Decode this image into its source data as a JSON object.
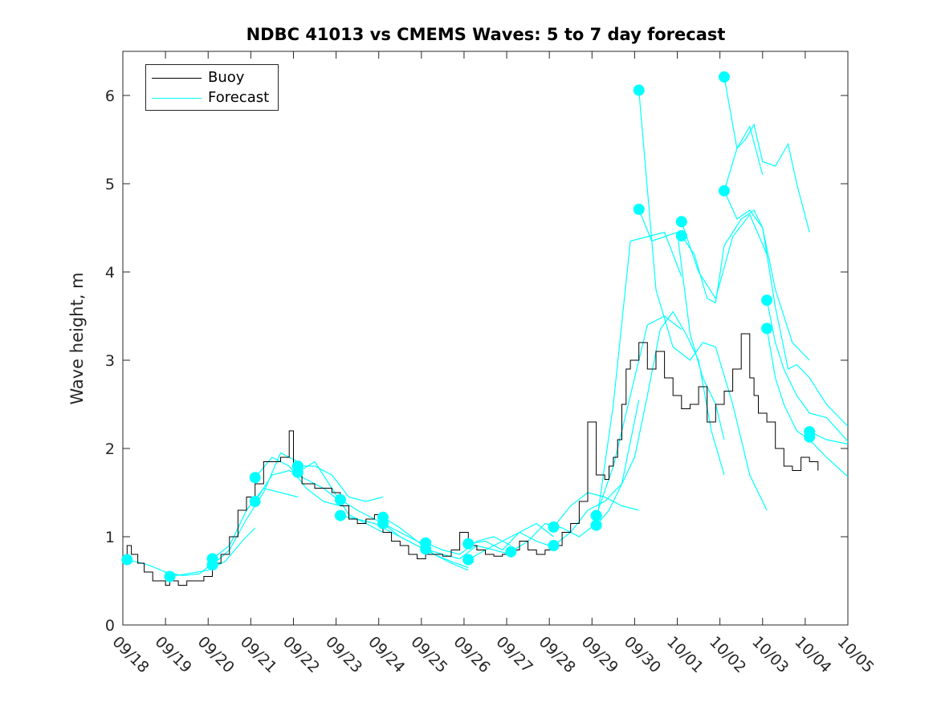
{
  "chart_data": {
    "type": "line",
    "title": "NDBC 41013 vs CMEMS Waves: 5 to 7 day forecast",
    "xlabel": "",
    "ylabel": "Wave height, m",
    "xlim": [
      0,
      17
    ],
    "ylim": [
      0,
      6.5
    ],
    "x_tick_labels": [
      "09/18",
      "09/19",
      "09/20",
      "09/21",
      "09/22",
      "09/23",
      "09/24",
      "09/25",
      "09/26",
      "09/27",
      "09/28",
      "09/29",
      "09/30",
      "10/01",
      "10/02",
      "10/03",
      "10/04",
      "10/05"
    ],
    "y_ticks": [
      0,
      1,
      2,
      3,
      4,
      5,
      6
    ],
    "legend": {
      "position": "top-left",
      "entries": [
        "Buoy",
        "Forecast"
      ]
    },
    "colors": {
      "buoy": "#000000",
      "forecast": "#00ffff",
      "axis": "#262626"
    },
    "series": [
      {
        "name": "Buoy",
        "x": [
          0,
          0.1,
          0.2,
          0.35,
          0.5,
          0.7,
          0.9,
          1,
          1.1,
          1.3,
          1.5,
          1.7,
          1.9,
          2.1,
          2.3,
          2.5,
          2.7,
          2.9,
          3.1,
          3.3,
          3.5,
          3.7,
          3.9,
          4,
          4.1,
          4.2,
          4.35,
          4.5,
          4.7,
          4.9,
          5.1,
          5.3,
          5.5,
          5.7,
          5.9,
          6.1,
          6.3,
          6.5,
          6.7,
          6.9,
          7.1,
          7.3,
          7.5,
          7.7,
          7.9,
          8.1,
          8.3,
          8.5,
          8.7,
          8.9,
          9.1,
          9.3,
          9.5,
          9.7,
          9.9,
          10.1,
          10.3,
          10.5,
          10.7,
          10.9,
          11.1,
          11.3,
          11.4,
          11.5,
          11.6,
          11.7,
          11.8,
          11.9,
          12.1,
          12.3,
          12.5,
          12.7,
          12.9,
          13.1,
          13.3,
          13.5,
          13.7,
          13.9,
          14.1,
          14.3,
          14.5,
          14.7,
          14.8,
          14.9,
          15.1,
          15.3,
          15.5,
          15.7,
          15.9,
          16.1,
          16.3
        ],
        "y": [
          0.75,
          0.9,
          0.8,
          0.7,
          0.6,
          0.5,
          0.5,
          0.45,
          0.5,
          0.45,
          0.5,
          0.5,
          0.55,
          0.7,
          0.8,
          1,
          1.3,
          1.45,
          1.6,
          1.85,
          1.85,
          1.9,
          2.2,
          1.8,
          1.7,
          1.6,
          1.6,
          1.55,
          1.55,
          1.5,
          1.35,
          1.2,
          1.15,
          1.2,
          1.25,
          1.05,
          0.95,
          0.9,
          0.8,
          0.75,
          0.8,
          0.8,
          0.78,
          0.85,
          1.05,
          0.9,
          0.85,
          0.8,
          0.78,
          0.8,
          0.85,
          0.95,
          0.85,
          0.8,
          0.85,
          0.9,
          1.05,
          1.15,
          1.4,
          2.3,
          1.7,
          1.65,
          1.8,
          1.9,
          2.1,
          2.5,
          2.9,
          3.0,
          3.2,
          2.9,
          3.1,
          2.8,
          2.6,
          2.45,
          2.5,
          2.7,
          2.3,
          2.5,
          2.65,
          2.9,
          3.3,
          2.8,
          2.6,
          2.4,
          2.3,
          2.0,
          1.8,
          1.75,
          1.9,
          1.85,
          1.75
        ]
      },
      {
        "name": "Forecast",
        "segments": [
          {
            "x": [
              0.1,
              0.6,
              1,
              1.4,
              1.8,
              2.1
            ],
            "y": [
              0.74,
              0.68,
              0.6,
              0.56,
              0.58,
              0.7
            ]
          },
          {
            "x": [
              1.1,
              1.5,
              2,
              2.4,
              2.8,
              3.1
            ],
            "y": [
              0.55,
              0.58,
              0.62,
              0.72,
              0.95,
              1.1
            ]
          },
          {
            "x": [
              2.1,
              2.5,
              2.9,
              3.3,
              3.7,
              4.1
            ],
            "y": [
              0.75,
              0.9,
              1.3,
              1.55,
              1.5,
              1.45
            ]
          },
          {
            "x": [
              2.1,
              2.5,
              2.9,
              3.3,
              3.7,
              4.1
            ],
            "y": [
              0.68,
              0.85,
              1.2,
              1.5,
              1.95,
              1.85
            ]
          },
          {
            "x": [
              3.1,
              3.5,
              3.9,
              4.3,
              4.7,
              5.1
            ],
            "y": [
              1.4,
              1.7,
              1.75,
              1.65,
              1.55,
              1.4
            ]
          },
          {
            "x": [
              3.1,
              3.5,
              3.9,
              4.3,
              4.7,
              5.1
            ],
            "y": [
              1.67,
              1.9,
              1.8,
              1.55,
              1.4,
              1.35
            ]
          },
          {
            "x": [
              4.1,
              4.5,
              4.9,
              5.3,
              5.7,
              6.1
            ],
            "y": [
              1.8,
              1.8,
              1.7,
              1.45,
              1.4,
              1.45
            ]
          },
          {
            "x": [
              4.1,
              4.5,
              4.9,
              5.3,
              5.7,
              6.1
            ],
            "y": [
              1.73,
              1.85,
              1.55,
              1.25,
              1.15,
              1.05
            ]
          },
          {
            "x": [
              5.1,
              5.5,
              5.9,
              6.3,
              6.7,
              7.1
            ],
            "y": [
              1.42,
              1.3,
              1.2,
              1.1,
              1.0,
              0.9
            ]
          },
          {
            "x": [
              5.1,
              5.5,
              5.9,
              6.3,
              6.7,
              7.1
            ],
            "y": [
              1.24,
              1.2,
              1.15,
              1.05,
              0.95,
              0.85
            ]
          },
          {
            "x": [
              6.1,
              6.5,
              6.9,
              7.3,
              7.7,
              8.1
            ],
            "y": [
              1.22,
              1.1,
              0.95,
              0.8,
              0.72,
              0.65
            ]
          },
          {
            "x": [
              6.1,
              6.5,
              6.9,
              7.3,
              7.7,
              8.1
            ],
            "y": [
              1.15,
              1.0,
              0.9,
              0.8,
              0.7,
              0.62
            ]
          },
          {
            "x": [
              7.1,
              7.5,
              7.9,
              8.3,
              8.7,
              9.1
            ],
            "y": [
              0.93,
              0.85,
              0.8,
              0.95,
              1.0,
              0.9
            ]
          },
          {
            "x": [
              7.1,
              7.5,
              7.9,
              8.3,
              8.7,
              9.1
            ],
            "y": [
              0.86,
              0.8,
              0.75,
              0.9,
              0.85,
              0.8
            ]
          },
          {
            "x": [
              8.1,
              8.5,
              8.9,
              9.3,
              9.7,
              10.1
            ],
            "y": [
              0.92,
              0.95,
              0.85,
              1.05,
              1.15,
              1.0
            ]
          },
          {
            "x": [
              8.1,
              8.5,
              8.9,
              9.3,
              9.7,
              10.1
            ],
            "y": [
              0.74,
              0.85,
              0.95,
              1.05,
              0.95,
              0.88
            ]
          },
          {
            "x": [
              9.1,
              9.5,
              9.9,
              10.3,
              10.7,
              11.1
            ],
            "y": [
              0.83,
              0.95,
              1.15,
              1.1,
              1.0,
              1.15
            ]
          },
          {
            "x": [
              10.1,
              10.5,
              10.9,
              11.3,
              11.7,
              12.1
            ],
            "y": [
              1.11,
              1.35,
              1.5,
              1.45,
              1.35,
              1.3
            ]
          },
          {
            "x": [
              10.1,
              10.5,
              10.9,
              11.3,
              11.7,
              12.1
            ],
            "y": [
              0.9,
              1.05,
              1.3,
              1.4,
              1.6,
              2.55
            ]
          },
          {
            "x": [
              11.1,
              11.5,
              11.9,
              12.3,
              12.7,
              13.1
            ],
            "y": [
              1.24,
              1.8,
              2.6,
              3.4,
              3.5,
              3.35
            ]
          },
          {
            "x": [
              11.1,
              11.4,
              11.7,
              12.0,
              12.3,
              12.6,
              12.9,
              13.2,
              13.5,
              13.8,
              14.1
            ],
            "y": [
              1.13,
              1.3,
              1.6,
              1.9,
              2.6,
              3.35,
              3.55,
              3.3,
              3.0,
              2.2,
              1.7
            ]
          },
          {
            "x": [
              11.1,
              11.5,
              11.9,
              12.3,
              12.7,
              13.1
            ],
            "y": [
              1.13,
              2.5,
              4.35,
              4.4,
              4.45,
              3.95
            ]
          },
          {
            "x": [
              12.1,
              12.4,
              12.7,
              13.0,
              13.3,
              13.6,
              13.9,
              14.1
            ],
            "y": [
              4.71,
              4.35,
              4.4,
              4.45,
              3.3,
              2.8,
              2.5,
              2.1
            ]
          },
          {
            "x": [
              12.1,
              12.5,
              12.9,
              13.3,
              13.6,
              13.9,
              14.3,
              14.7,
              15.1
            ],
            "y": [
              6.06,
              3.8,
              3.15,
              3.0,
              3.2,
              3.15,
              2.5,
              1.7,
              1.3
            ]
          },
          {
            "x": [
              13.1,
              13.5,
              13.9,
              14.3,
              14.7,
              15.1
            ],
            "y": [
              4.57,
              4.0,
              3.7,
              4.4,
              4.65,
              4.2
            ]
          },
          {
            "x": [
              13.1,
              13.4,
              13.7,
              13.9,
              14.1,
              14.5,
              14.8,
              15.0,
              15.3,
              15.7,
              16.1
            ],
            "y": [
              4.41,
              4.2,
              3.7,
              3.65,
              4.3,
              4.6,
              4.7,
              4.5,
              3.8,
              3.2,
              3.0
            ]
          },
          {
            "x": [
              14.1,
              14.4,
              14.6,
              14.8,
              15.0,
              15.3,
              15.6,
              15.8,
              16.1
            ],
            "y": [
              6.21,
              5.4,
              5.5,
              5.67,
              5.25,
              5.2,
              5.45,
              5.0,
              4.45
            ]
          },
          {
            "x": [
              14.1,
              14.4,
              14.7,
              15.0,
              15.3,
              15.6,
              15.8,
              16.1,
              16.5,
              17.0
            ],
            "y": [
              4.92,
              4.6,
              4.7,
              4.5,
              3.6,
              2.9,
              2.95,
              2.8,
              2.5,
              2.25
            ]
          },
          {
            "x": [
              14.1,
              14.4,
              14.7,
              15.0
            ],
            "y": [
              4.92,
              5.4,
              5.65,
              5.1
            ]
          },
          {
            "x": [
              15.1,
              15.3,
              15.5,
              15.8,
              16.1,
              16.5,
              17.0
            ],
            "y": [
              3.68,
              3.2,
              2.9,
              2.6,
              2.4,
              2.35,
              2.08
            ]
          },
          {
            "x": [
              15.1,
              15.3,
              15.5,
              15.8,
              16.1,
              16.5,
              17.0
            ],
            "y": [
              3.36,
              2.8,
              2.5,
              2.2,
              2.1,
              1.9,
              1.68
            ]
          },
          {
            "x": [
              16.1,
              16.5,
              17.0
            ],
            "y": [
              2.19,
              2.1,
              2.05
            ]
          }
        ],
        "markers": {
          "x": [
            0.1,
            1.1,
            2.1,
            2.1,
            3.1,
            3.1,
            4.1,
            4.1,
            5.1,
            5.1,
            6.1,
            6.1,
            7.1,
            7.1,
            8.1,
            8.1,
            9.1,
            10.1,
            10.1,
            11.1,
            11.1,
            12.1,
            12.1,
            13.1,
            13.1,
            14.1,
            14.1,
            15.1,
            15.1,
            16.1,
            16.1
          ],
          "y": [
            0.74,
            0.55,
            0.75,
            0.68,
            1.67,
            1.4,
            1.8,
            1.73,
            1.42,
            1.24,
            1.22,
            1.15,
            0.93,
            0.86,
            0.92,
            0.74,
            0.83,
            1.11,
            0.9,
            1.24,
            1.13,
            6.06,
            4.71,
            4.57,
            4.41,
            6.21,
            4.92,
            3.68,
            3.36,
            2.19,
            2.13
          ]
        }
      }
    ]
  }
}
